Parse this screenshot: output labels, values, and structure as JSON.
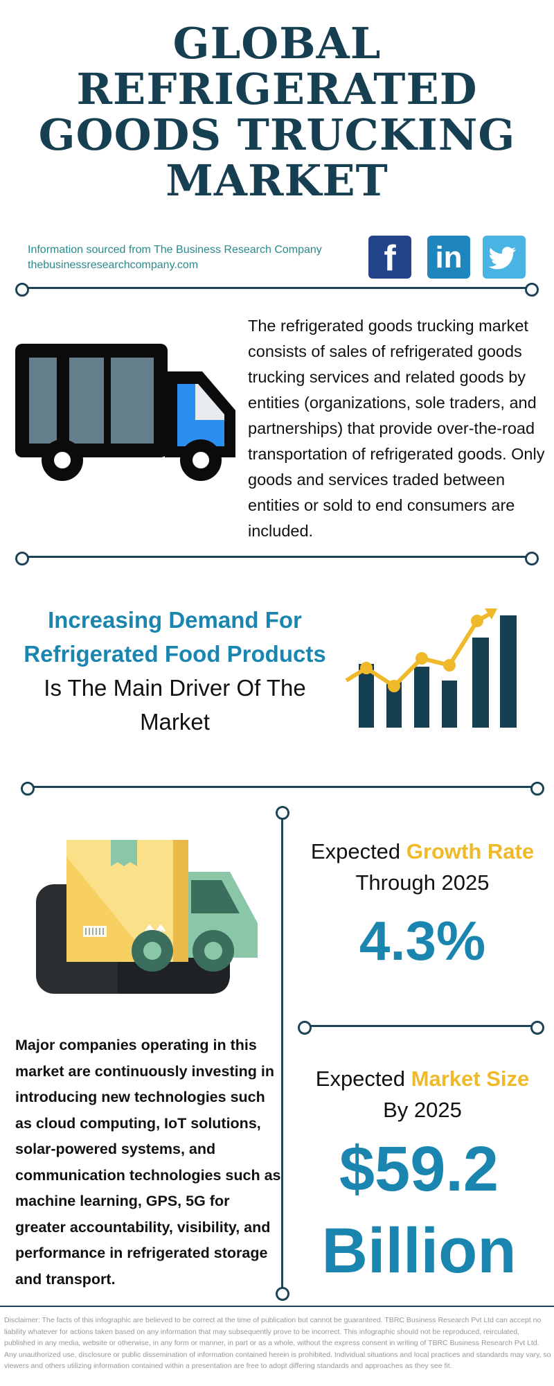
{
  "title": {
    "line1": "GLOBAL",
    "line2": "REFRIGERATED",
    "line3": "GOODS TRUCKING",
    "line4": "MARKET"
  },
  "source": {
    "line1": "Information sourced from The Business Research Company",
    "line2": "thebusinessresearchcompany.com"
  },
  "social": [
    {
      "name": "facebook-icon",
      "glyph": "f",
      "color": "#23448a"
    },
    {
      "name": "linkedin-icon",
      "glyph": "in",
      "color": "#1f85bd"
    },
    {
      "name": "twitter-icon",
      "glyph": "twitter bird",
      "color": "#49b3e3"
    }
  ],
  "description": "The refrigerated goods trucking market consists of sales of refrigerated goods trucking services and related goods by entities (organizations, sole traders, and partnerships) that provide over-the-road transportation of refrigerated goods. Only goods and services traded between entities or sold to end consumers are included.",
  "driver": {
    "highlight_line1": "Increasing Demand For",
    "highlight_line2": "Refrigerated Food Products",
    "rest_line1": "Is The Main Driver Of The",
    "rest_line2": "Market"
  },
  "growth": {
    "prefix": "Expected",
    "highlight": "Growth Rate",
    "suffix": "Through 2025",
    "value": "4.3%"
  },
  "market_size": {
    "prefix": "Expected",
    "highlight": "Market Size",
    "suffix": "By 2025",
    "value_line1": "$59.2",
    "value_line2": "Billion"
  },
  "companies_text": "Major companies operating in this market are continuously investing in introducing new technologies such as cloud computing, IoT solutions, solar-powered systems, and communication technologies such as machine learning, GPS, 5G for greater accountability, visibility, and performance in refrigerated storage and transport.",
  "disclaimer": "Disclaimer: The facts of this infographic are believed to be correct at the time of publication but cannot be guaranteed. TBRC Business Research Pvt Ltd can accept no liability whatever for actions taken based on any information that may subsequently prove to be incorrect. This infographic should not be reproduced, reirculated, published in any media, website or otherwise, in any form or manner, in part or as a whole, without the express consent in writing of TBRC Business Research Pvt Ltd. Any unauthorized use, disclosure or public dissemination of information contained herein is prohibited. Individual situations and local practices and standards may vary, so viewers and others utilizing information contained within a presentation are free to adopt differing standards and approaches as they see fit.",
  "colors": {
    "navy": "#173f52",
    "teal_blue": "#1a86b0",
    "gold": "#f0b92a",
    "source_green": "#2a8a8a"
  }
}
